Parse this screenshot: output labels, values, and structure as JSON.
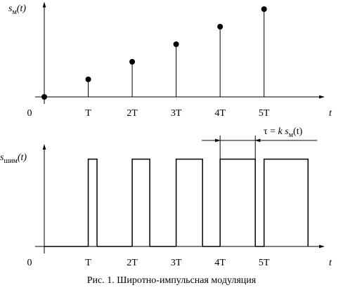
{
  "chart_data": [
    {
      "type": "stem",
      "ylabel": {
        "main": "s",
        "sub": "м",
        "arg": "(t)"
      },
      "x": [
        0,
        1,
        2,
        3,
        4,
        5
      ],
      "values": [
        0,
        1,
        2,
        3,
        4,
        5
      ],
      "xlim": [
        0,
        6.3
      ],
      "ylim": [
        0,
        5.3
      ],
      "xticks": [
        {
          "value": 0,
          "label": "0"
        },
        {
          "value": 1,
          "label": "T"
        },
        {
          "value": 2,
          "label": "2T"
        },
        {
          "value": 3,
          "label": "3T"
        },
        {
          "value": 4,
          "label": "4T"
        },
        {
          "value": 5,
          "label": "5T"
        }
      ],
      "xlabel": "t",
      "color": "#000000"
    },
    {
      "type": "pwm",
      "ylabel": {
        "main": "s",
        "sub": "шим",
        "arg": "(t)"
      },
      "x": [
        1,
        2,
        3,
        4,
        5
      ],
      "widths": [
        0.2,
        0.4,
        0.6,
        0.8,
        1.0
      ],
      "amplitude": 1,
      "xlim": [
        0,
        6.3
      ],
      "ylim": [
        0,
        1.15
      ],
      "xticks": [
        {
          "value": 0,
          "label": "0"
        },
        {
          "value": 1,
          "label": "T"
        },
        {
          "value": 2,
          "label": "2T"
        },
        {
          "value": 3,
          "label": "3T"
        },
        {
          "value": 4,
          "label": "4T"
        },
        {
          "value": 5,
          "label": "5T"
        }
      ],
      "xlabel": "t",
      "color": "#000000",
      "annotation": {
        "lead": "τ = ",
        "k": "k",
        "s": "s",
        "sub": "м",
        "arg": "(t)"
      }
    },
    {
      "caption": "Рис. 1. Широтно-импульсная модуляция"
    }
  ]
}
